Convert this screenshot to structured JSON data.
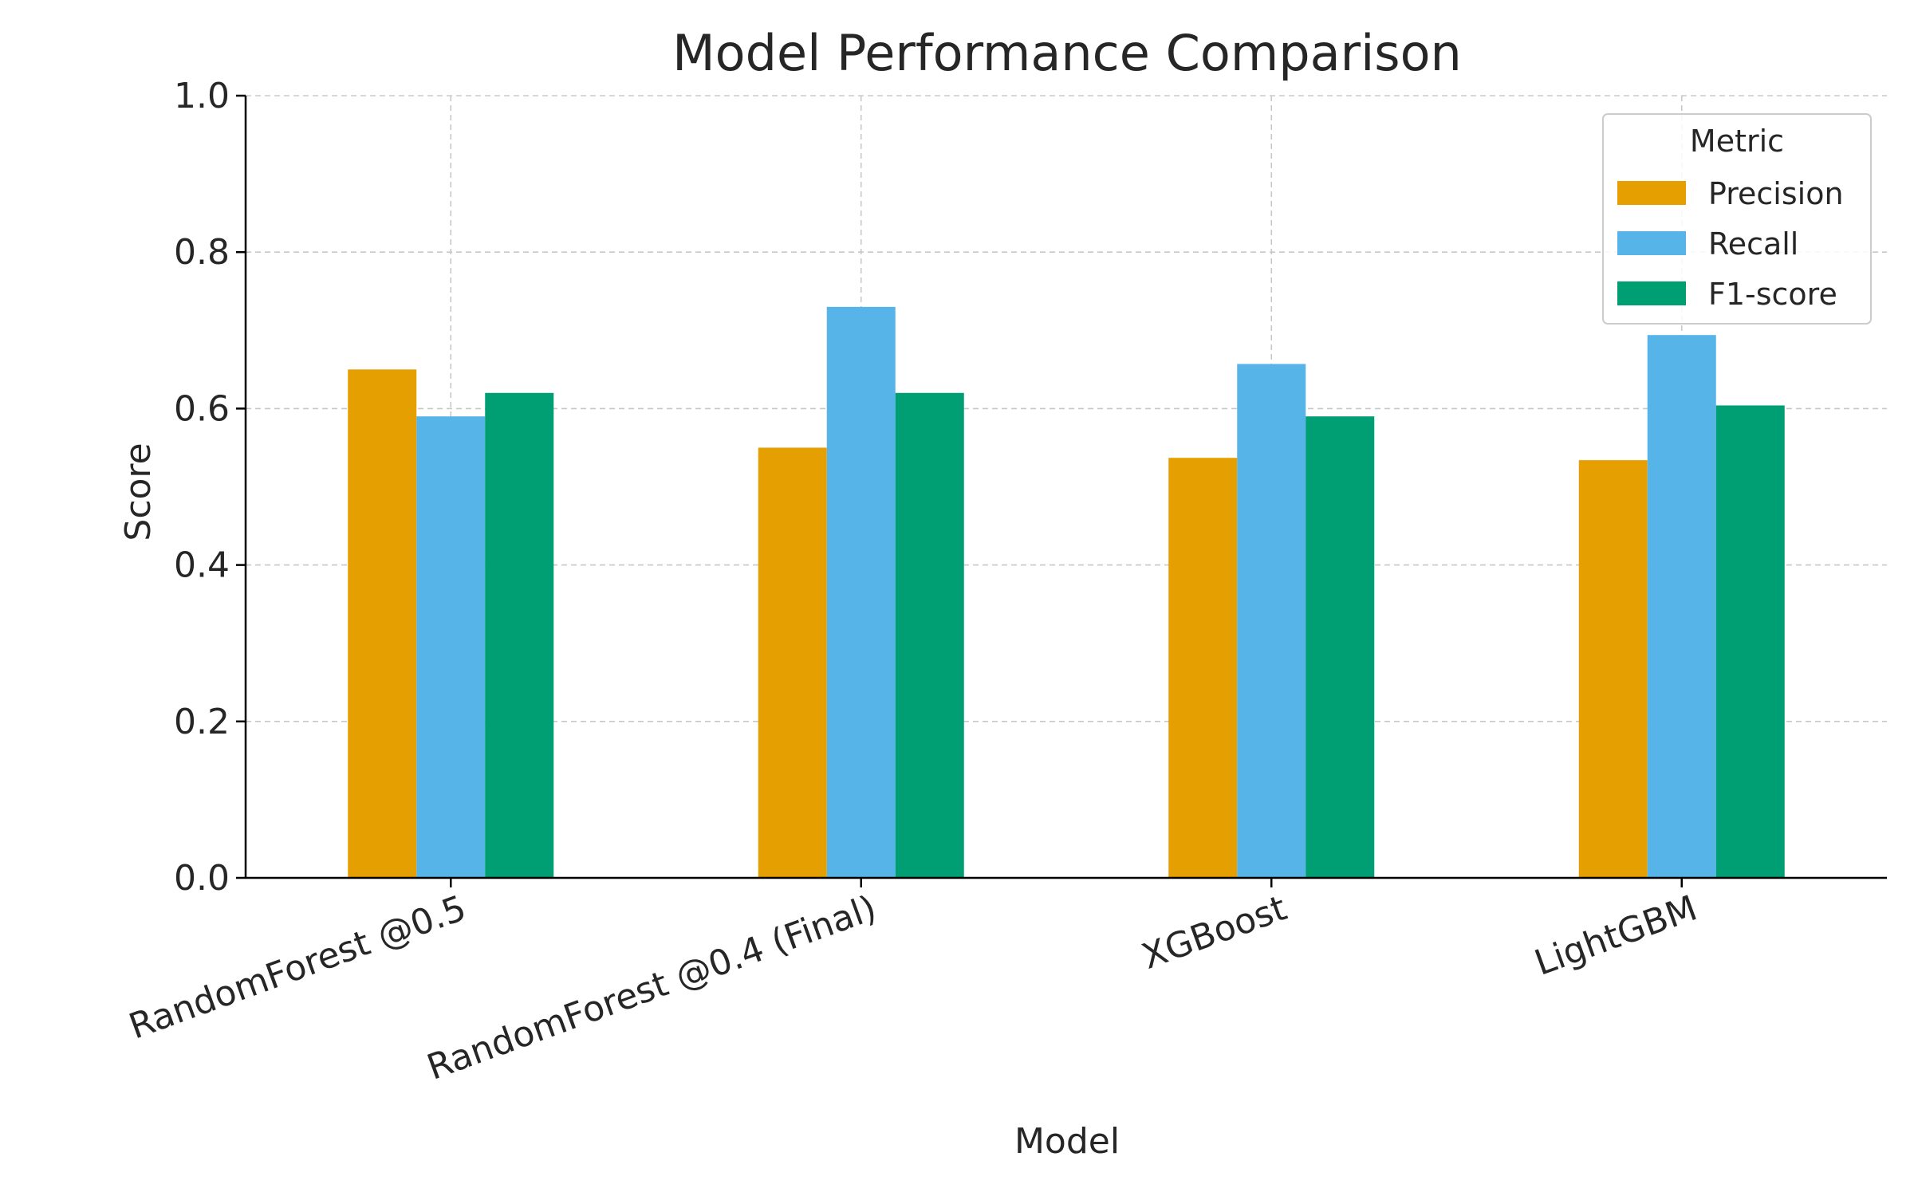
{
  "chart_data": {
    "type": "bar",
    "title": "Model Performance Comparison",
    "xlabel": "Model",
    "ylabel": "Score",
    "categories": [
      "RandomForest @0.5",
      "RandomForest @0.4 (Final)",
      "XGBoost",
      "LightGBM"
    ],
    "series": [
      {
        "name": "Precision",
        "color": "#E69F00",
        "values": [
          0.65,
          0.55,
          0.537,
          0.534
        ]
      },
      {
        "name": "Recall",
        "color": "#56B4E9",
        "values": [
          0.59,
          0.73,
          0.657,
          0.694
        ]
      },
      {
        "name": "F1-score",
        "color": "#009E73",
        "values": [
          0.62,
          0.62,
          0.59,
          0.604
        ]
      }
    ],
    "ylim": [
      0,
      1.0
    ],
    "yticks": [
      0.0,
      0.2,
      0.4,
      0.6,
      0.8,
      1.0
    ],
    "ytick_labels": [
      "0.0",
      "0.2",
      "0.4",
      "0.6",
      "0.8",
      "1.0"
    ],
    "grid": true,
    "legend": {
      "title": "Metric",
      "position": "top-right"
    }
  }
}
